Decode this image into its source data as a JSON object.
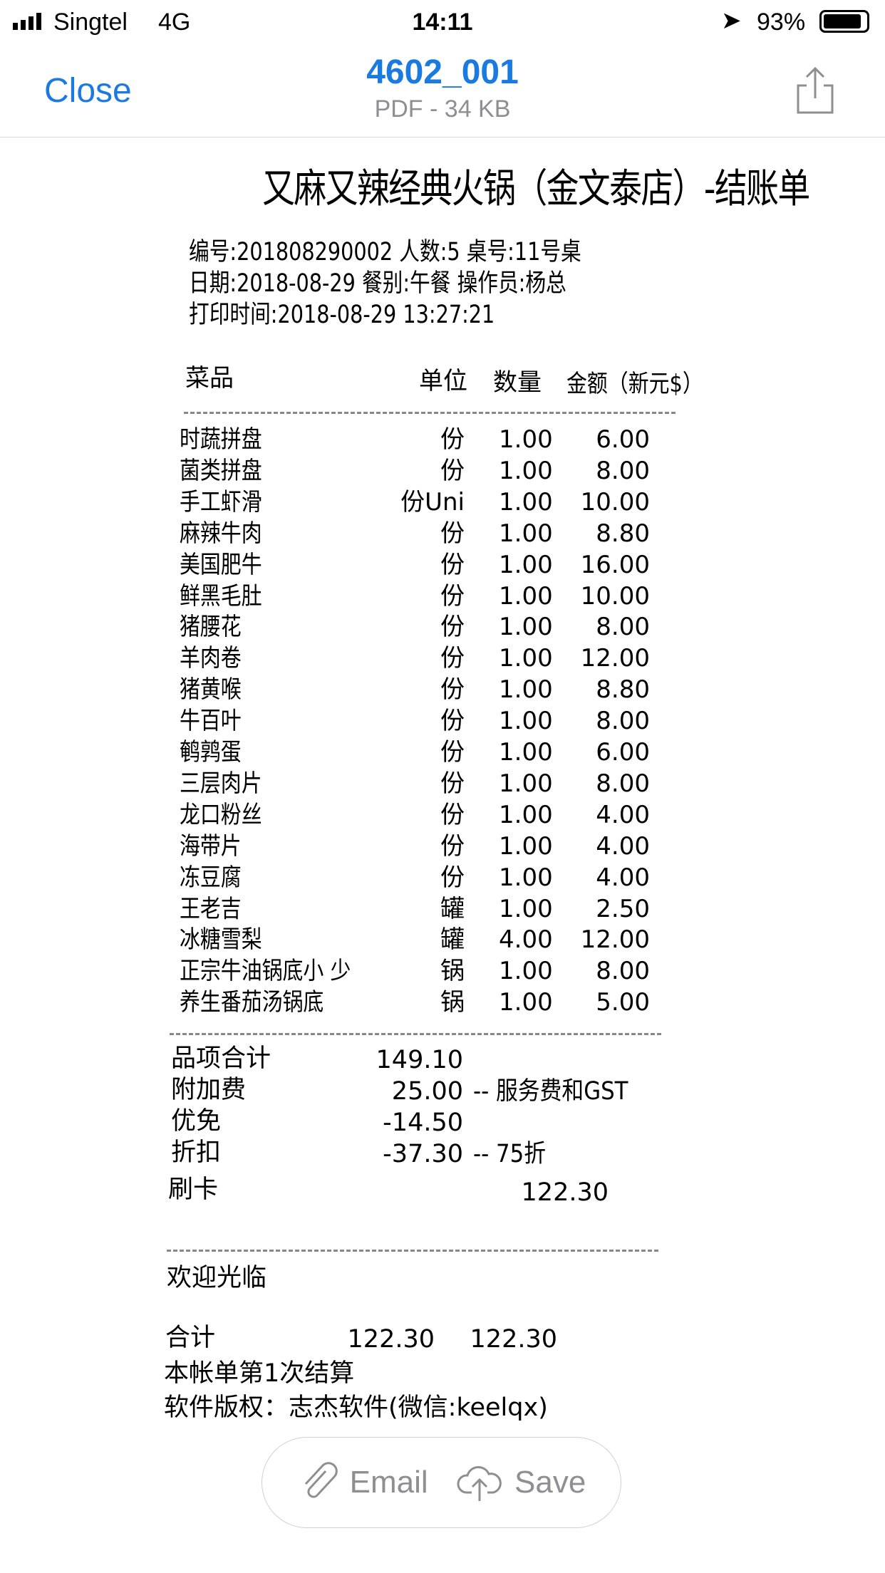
{
  "status": {
    "carrier": "Singtel",
    "network": "4G",
    "time": "14:11",
    "battery": "93%"
  },
  "nav": {
    "close": "Close",
    "title": "4602_001",
    "subtitle": "PDF - 34 KB"
  },
  "receipt": {
    "title": "又麻又辣经典火锅（金文泰店）-结账单",
    "header": [
      "编号:201808290002 人数:5 桌号:11号桌",
      "日期:2018-08-29 餐别:午餐 操作员:杨总",
      "打印时间:2018-08-29 13:27:21"
    ],
    "columns": {
      "item": "菜品",
      "unit": "单位",
      "qty": "数量",
      "amount": "金额（新元$）"
    },
    "items": [
      {
        "name": "时蔬拼盘",
        "unit": "份",
        "qty": "1.00",
        "amount": "6.00"
      },
      {
        "name": "菌类拼盘",
        "unit": "份",
        "qty": "1.00",
        "amount": "8.00"
      },
      {
        "name": "手工虾滑",
        "unit": "份Uni",
        "qty": "1.00",
        "amount": "10.00"
      },
      {
        "name": "麻辣牛肉",
        "unit": "份",
        "qty": "1.00",
        "amount": "8.80"
      },
      {
        "name": "美国肥牛",
        "unit": "份",
        "qty": "1.00",
        "amount": "16.00"
      },
      {
        "name": "鲜黑毛肚",
        "unit": "份",
        "qty": "1.00",
        "amount": "10.00"
      },
      {
        "name": "猪腰花",
        "unit": "份",
        "qty": "1.00",
        "amount": "8.00"
      },
      {
        "name": "羊肉卷",
        "unit": "份",
        "qty": "1.00",
        "amount": "12.00"
      },
      {
        "name": "猪黄喉",
        "unit": "份",
        "qty": "1.00",
        "amount": "8.80"
      },
      {
        "name": "牛百叶",
        "unit": "份",
        "qty": "1.00",
        "amount": "8.00"
      },
      {
        "name": "鹌鹑蛋",
        "unit": "份",
        "qty": "1.00",
        "amount": "6.00"
      },
      {
        "name": "三层肉片",
        "unit": "份",
        "qty": "1.00",
        "amount": "8.00"
      },
      {
        "name": "龙口粉丝",
        "unit": "份",
        "qty": "1.00",
        "amount": "4.00"
      },
      {
        "name": "海带片",
        "unit": "份",
        "qty": "1.00",
        "amount": "4.00"
      },
      {
        "name": "冻豆腐",
        "unit": "份",
        "qty": "1.00",
        "amount": "4.00"
      },
      {
        "name": "王老吉",
        "unit": "罐",
        "qty": "1.00",
        "amount": "2.50"
      },
      {
        "name": "冰糖雪梨",
        "unit": "罐",
        "qty": "4.00",
        "amount": "12.00"
      },
      {
        "name": "正宗牛油锅底小 少",
        "unit": "锅",
        "qty": "1.00",
        "amount": "8.00"
      },
      {
        "name": "养生番茄汤锅底",
        "unit": "锅",
        "qty": "1.00",
        "amount": "5.00"
      }
    ],
    "summary": [
      {
        "label": "品项合计",
        "value": "149.10",
        "note": ""
      },
      {
        "label": "附加费",
        "value": "25.00",
        "note": "-- 服务费和GST"
      },
      {
        "label": "优免",
        "value": "-14.50",
        "note": ""
      },
      {
        "label": "折扣",
        "value": "-37.30",
        "note": "-- 75折"
      }
    ],
    "card": {
      "label": "刷卡",
      "value": "122.30"
    },
    "welcome": "欢迎光临",
    "total": {
      "label": "合计",
      "value1": "122.30",
      "value2": "122.30"
    },
    "settle": "本帐单第1次结算",
    "copyright": "软件版权：志杰软件(微信:keelqx)"
  },
  "actions": {
    "email": "Email",
    "save": "Save"
  },
  "colors": {
    "accent": "#1a7ae0",
    "gray": "#8e8e93"
  }
}
